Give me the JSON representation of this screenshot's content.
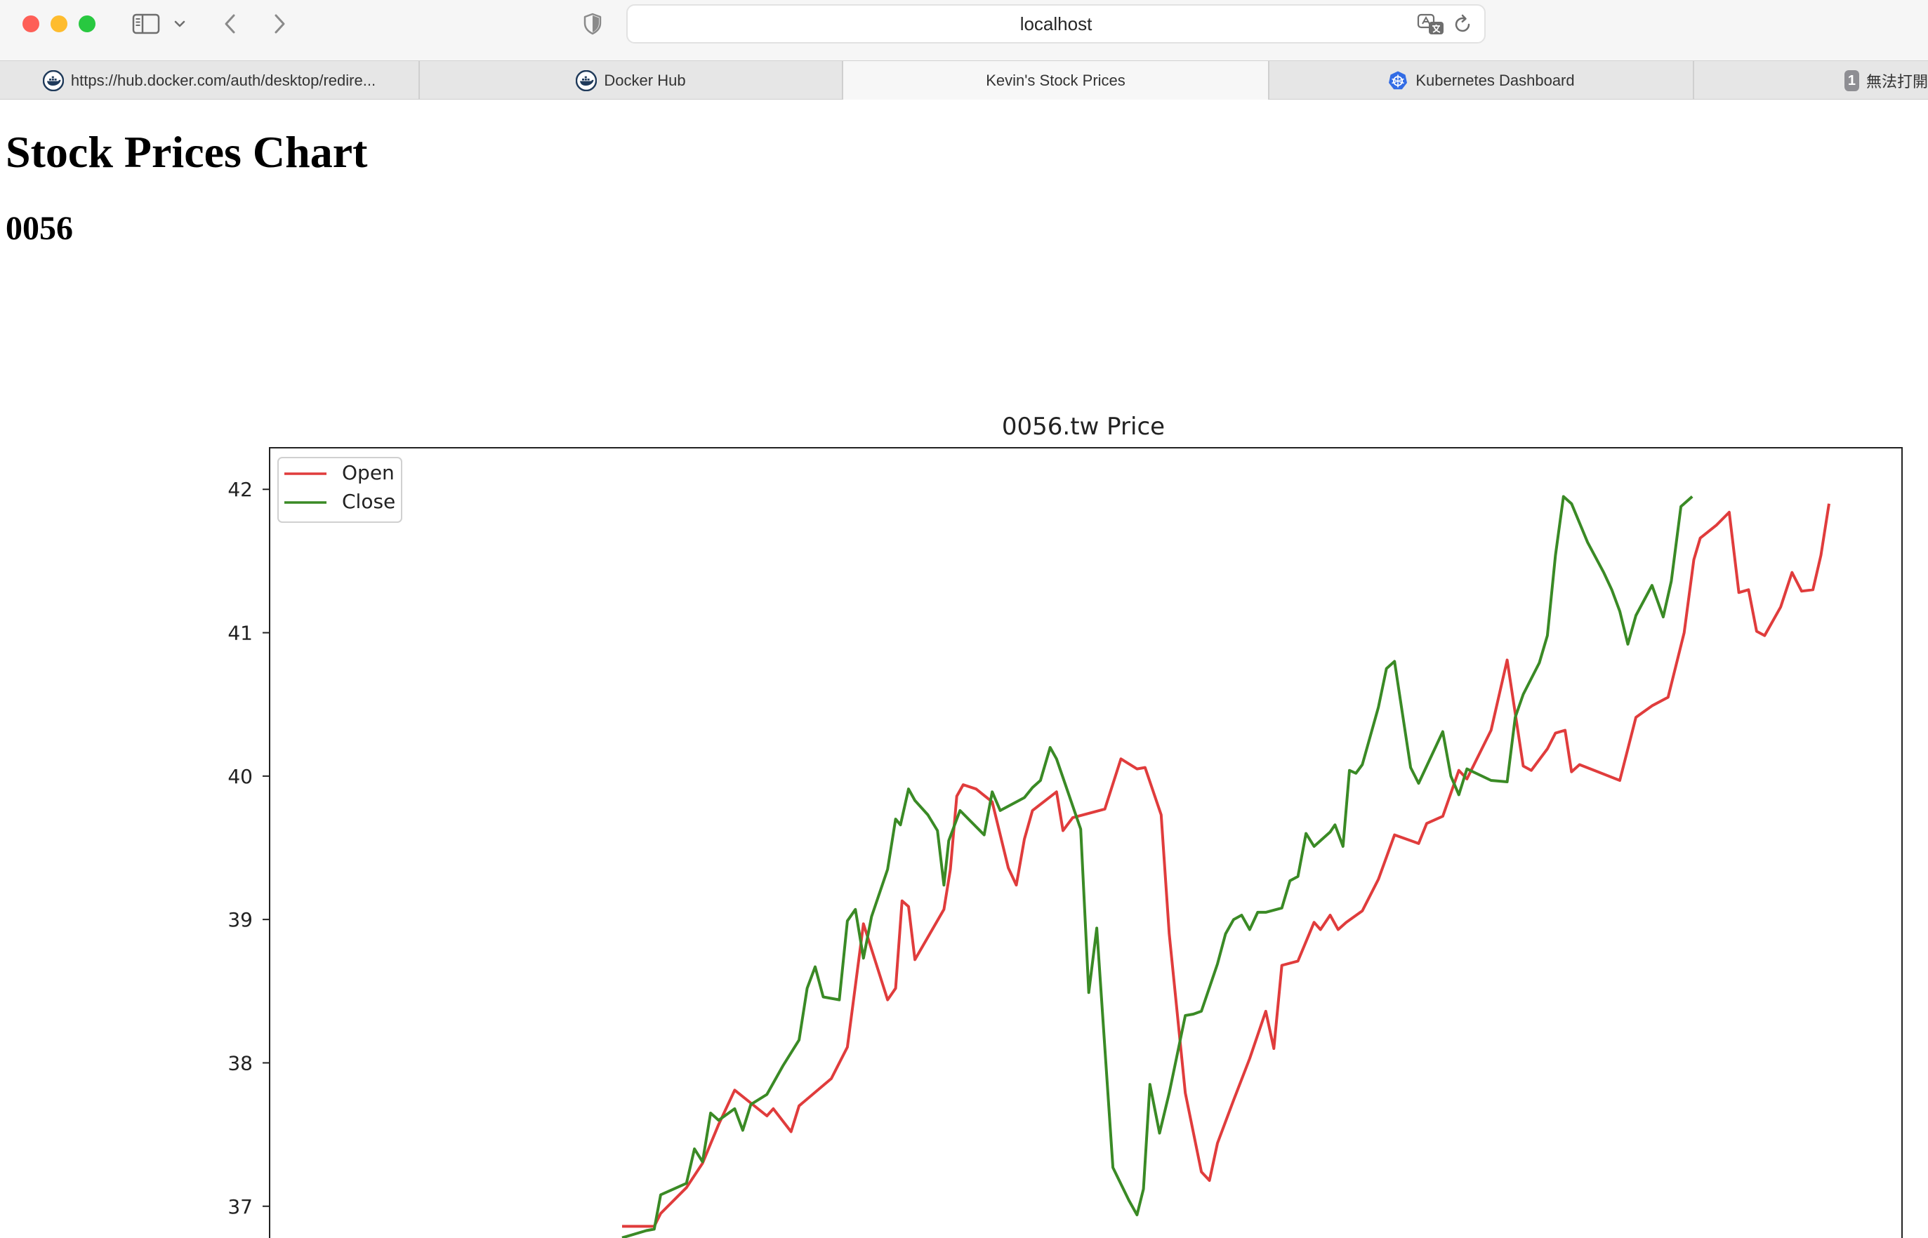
{
  "browser": {
    "address": "localhost",
    "icons": {
      "sidebar": "sidebar-icon",
      "sidebar_menu": "chevron-down-icon",
      "back": "chevron-left-icon",
      "forward": "chevron-right-icon",
      "privacy": "shield-icon",
      "translate": "translate-icon",
      "reload": "reload-icon"
    },
    "tabs": [
      {
        "label": "https://hub.docker.com/auth/desktop/redire...",
        "icon": "docker-icon",
        "active": false
      },
      {
        "label": "Docker Hub",
        "icon": "docker-icon",
        "active": false
      },
      {
        "label": "Kevin's Stock Prices",
        "icon": "",
        "active": true
      },
      {
        "label": "Kubernetes Dashboard",
        "icon": "kubernetes-icon",
        "active": false
      },
      {
        "label": "無法打開",
        "badge": "1",
        "active": false
      }
    ]
  },
  "page": {
    "title": "Stock Prices Chart",
    "subtitle": "0056"
  },
  "colors": {
    "open": "#e03c3c",
    "close": "#3a8a25"
  },
  "chart_data": {
    "type": "line",
    "title": "0056.tw Price",
    "xlabel": "",
    "ylabel": "",
    "ylim": [
      36.71,
      42.29
    ],
    "yticks": [
      37,
      38,
      39,
      40,
      41,
      42
    ],
    "legend": "top-left",
    "grid": false,
    "series": [
      {
        "name": "Open",
        "color": "#e03c3c",
        "points": [
          [
            0,
            36.86
          ],
          [
            2,
            36.86
          ],
          [
            2.4,
            36.95
          ],
          [
            4,
            37.13
          ],
          [
            5,
            37.3
          ],
          [
            6,
            37.57
          ],
          [
            7,
            37.81
          ],
          [
            9,
            37.63
          ],
          [
            9.4,
            37.68
          ],
          [
            10.5,
            37.52
          ],
          [
            11,
            37.7
          ],
          [
            13,
            37.89
          ],
          [
            14,
            38.11
          ],
          [
            15,
            38.97
          ],
          [
            16.5,
            38.44
          ],
          [
            17,
            38.52
          ],
          [
            17.4,
            39.13
          ],
          [
            17.8,
            39.09
          ],
          [
            18.2,
            38.72
          ],
          [
            20,
            39.07
          ],
          [
            20.4,
            39.35
          ],
          [
            20.8,
            39.86
          ],
          [
            21.2,
            39.94
          ],
          [
            22,
            39.91
          ],
          [
            23,
            39.82
          ],
          [
            24,
            39.36
          ],
          [
            24.5,
            39.24
          ],
          [
            25,
            39.56
          ],
          [
            25.5,
            39.76
          ],
          [
            27,
            39.89
          ],
          [
            27.4,
            39.62
          ],
          [
            28,
            39.71
          ],
          [
            30,
            39.77
          ],
          [
            31,
            40.12
          ],
          [
            32,
            40.05
          ],
          [
            32.5,
            40.06
          ],
          [
            33.5,
            39.73
          ],
          [
            34,
            38.9
          ],
          [
            35,
            37.79
          ],
          [
            36,
            37.24
          ],
          [
            36.5,
            37.18
          ],
          [
            37,
            37.44
          ],
          [
            38,
            37.74
          ],
          [
            39,
            38.03
          ],
          [
            40,
            38.36
          ],
          [
            40.5,
            38.1
          ],
          [
            41,
            38.68
          ],
          [
            42,
            38.71
          ],
          [
            43,
            38.98
          ],
          [
            43.4,
            38.93
          ],
          [
            44,
            39.03
          ],
          [
            44.5,
            38.93
          ],
          [
            45,
            38.98
          ],
          [
            46,
            39.06
          ],
          [
            47,
            39.28
          ],
          [
            48,
            39.59
          ],
          [
            49,
            39.55
          ],
          [
            49.5,
            39.53
          ],
          [
            50,
            39.67
          ],
          [
            51,
            39.72
          ],
          [
            52,
            40.04
          ],
          [
            52.5,
            39.98
          ],
          [
            54,
            40.32
          ],
          [
            55,
            40.81
          ],
          [
            56,
            40.07
          ],
          [
            56.5,
            40.04
          ],
          [
            57.5,
            40.19
          ],
          [
            58,
            40.3
          ],
          [
            58.6,
            40.32
          ],
          [
            59,
            40.03
          ],
          [
            59.5,
            40.08
          ],
          [
            62,
            39.97
          ],
          [
            63,
            40.41
          ],
          [
            64,
            40.49
          ],
          [
            65,
            40.55
          ],
          [
            66,
            41.0
          ],
          [
            66.6,
            41.51
          ],
          [
            67,
            41.66
          ],
          [
            68,
            41.75
          ],
          [
            68.8,
            41.84
          ],
          [
            69.4,
            41.28
          ],
          [
            70,
            41.3
          ],
          [
            70.5,
            41.01
          ],
          [
            71,
            40.98
          ],
          [
            72,
            41.18
          ],
          [
            72.7,
            41.42
          ],
          [
            73.3,
            41.29
          ],
          [
            74,
            41.3
          ],
          [
            74.5,
            41.54
          ],
          [
            75,
            41.9
          ]
        ]
      },
      {
        "name": "Close",
        "color": "#3a8a25",
        "points": [
          [
            0,
            36.78
          ],
          [
            1.5,
            36.83
          ],
          [
            2,
            36.84
          ],
          [
            2.4,
            37.08
          ],
          [
            4,
            37.16
          ],
          [
            4.5,
            37.4
          ],
          [
            5,
            37.31
          ],
          [
            5.5,
            37.65
          ],
          [
            6,
            37.6
          ],
          [
            7,
            37.68
          ],
          [
            7.5,
            37.53
          ],
          [
            8,
            37.71
          ],
          [
            9,
            37.78
          ],
          [
            10,
            37.98
          ],
          [
            11,
            38.16
          ],
          [
            11.5,
            38.52
          ],
          [
            12,
            38.67
          ],
          [
            12.5,
            38.46
          ],
          [
            13.5,
            38.44
          ],
          [
            14,
            38.99
          ],
          [
            14.5,
            39.07
          ],
          [
            15,
            38.73
          ],
          [
            15.5,
            39.02
          ],
          [
            16.5,
            39.35
          ],
          [
            17,
            39.7
          ],
          [
            17.3,
            39.66
          ],
          [
            17.8,
            39.91
          ],
          [
            18.2,
            39.83
          ],
          [
            19,
            39.73
          ],
          [
            19.6,
            39.62
          ],
          [
            20,
            39.24
          ],
          [
            20.3,
            39.55
          ],
          [
            21,
            39.76
          ],
          [
            22.5,
            39.59
          ],
          [
            23,
            39.89
          ],
          [
            23.5,
            39.76
          ],
          [
            25,
            39.85
          ],
          [
            25.5,
            39.92
          ],
          [
            26,
            39.97
          ],
          [
            26.6,
            40.2
          ],
          [
            27,
            40.12
          ],
          [
            28.5,
            39.63
          ],
          [
            29,
            38.49
          ],
          [
            29.5,
            38.94
          ],
          [
            30.5,
            37.27
          ],
          [
            31.5,
            37.04
          ],
          [
            32,
            36.94
          ],
          [
            32.4,
            37.12
          ],
          [
            32.8,
            37.85
          ],
          [
            33.4,
            37.51
          ],
          [
            34,
            37.79
          ],
          [
            35,
            38.33
          ],
          [
            35.5,
            38.34
          ],
          [
            36,
            38.36
          ],
          [
            37,
            38.69
          ],
          [
            37.5,
            38.9
          ],
          [
            38,
            39.0
          ],
          [
            38.5,
            39.03
          ],
          [
            39,
            38.93
          ],
          [
            39.5,
            39.05
          ],
          [
            40,
            39.05
          ],
          [
            41,
            39.08
          ],
          [
            41.5,
            39.27
          ],
          [
            42,
            39.3
          ],
          [
            42.5,
            39.6
          ],
          [
            43,
            39.51
          ],
          [
            44,
            39.61
          ],
          [
            44.3,
            39.66
          ],
          [
            44.8,
            39.51
          ],
          [
            45.2,
            40.04
          ],
          [
            45.6,
            40.02
          ],
          [
            46,
            40.08
          ],
          [
            47,
            40.48
          ],
          [
            47.5,
            40.75
          ],
          [
            48,
            40.8
          ],
          [
            49,
            40.06
          ],
          [
            49.5,
            39.95
          ],
          [
            51,
            40.31
          ],
          [
            51.5,
            40.0
          ],
          [
            52,
            39.87
          ],
          [
            52.5,
            40.05
          ],
          [
            54,
            39.97
          ],
          [
            55,
            39.96
          ],
          [
            55.5,
            40.41
          ],
          [
            56,
            40.57
          ],
          [
            57,
            40.79
          ],
          [
            57.5,
            40.98
          ],
          [
            58,
            41.54
          ],
          [
            58.5,
            41.95
          ],
          [
            59,
            41.9
          ],
          [
            60,
            41.63
          ],
          [
            61,
            41.42
          ],
          [
            61.5,
            41.3
          ],
          [
            62,
            41.15
          ],
          [
            62.5,
            40.92
          ],
          [
            63,
            41.12
          ],
          [
            64,
            41.33
          ],
          [
            64.7,
            41.11
          ],
          [
            65.2,
            41.36
          ],
          [
            65.8,
            41.88
          ],
          [
            66.5,
            41.95
          ]
        ]
      }
    ]
  }
}
